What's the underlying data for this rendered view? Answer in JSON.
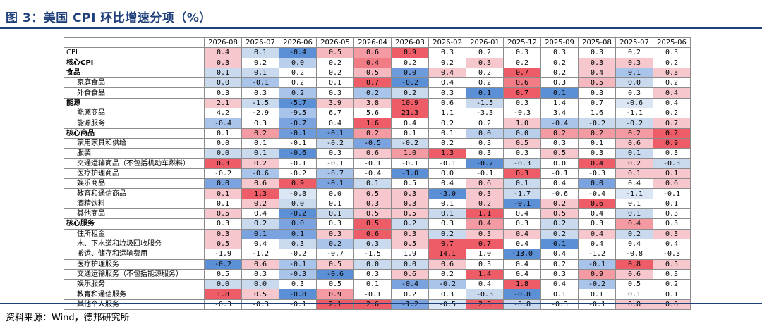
{
  "title": "图 3：美国 CPI 环比增速分项（%）",
  "source": "资料来源：Wind，德邦研究所",
  "table": {
    "columns": [
      "2026-08",
      "2026-07",
      "2026-06",
      "2026-05",
      "2026-04",
      "2026-03",
      "2026-02",
      "2026-01",
      "2025-12",
      "2025-09",
      "2025-08",
      "2025-07",
      "2025-06"
    ],
    "rows": [
      {
        "label": "CPI",
        "level": 0,
        "values": [
          "0.4",
          "0.1",
          "-0.4",
          "0.5",
          "0.6",
          "0.9",
          "0.3",
          "0.2",
          "0.3",
          "0.3",
          "0.3",
          "0.2",
          "0.3"
        ],
        "colors": [
          "#f6c7cc",
          "#c9d9ee",
          "#5b8fd6",
          "#f5b8be",
          "#f49aa2",
          "#ee5c67",
          "#ffffff",
          "#ffffff",
          "#ffffff",
          "#ffffff",
          "#ffffff",
          "#ffffff",
          "#ffffff"
        ]
      },
      {
        "label": "核心CPI",
        "level": 1,
        "values": [
          "0.3",
          "0.2",
          "0.0",
          "0.2",
          "0.4",
          "0.2",
          "0.2",
          "0.3",
          "0.2",
          "0.2",
          "0.3",
          "0.3",
          "0.2"
        ],
        "colors": [
          "#f6c7cc",
          "#ffffff",
          "#b9cfec",
          "#ffffff",
          "#f17c86",
          "#ffffff",
          "#ffffff",
          "#f6c7cc",
          "#ffffff",
          "#ffffff",
          "#f6c7cc",
          "#f6c7cc",
          "#ffffff"
        ]
      },
      {
        "label": "食品",
        "level": 1,
        "values": [
          "0.1",
          "0.1",
          "0.2",
          "0.2",
          "0.5",
          "0.0",
          "0.4",
          "0.2",
          "0.7",
          "0.2",
          "0.4",
          "0.1",
          "0.3"
        ],
        "colors": [
          "#c9d9ee",
          "#c9d9ee",
          "#ffffff",
          "#ffffff",
          "#f5b8be",
          "#6e9bdb",
          "#f6c7cc",
          "#ffffff",
          "#ee5c67",
          "#ffffff",
          "#f6c7cc",
          "#a9c4ea",
          "#f6c7cc"
        ]
      },
      {
        "label": "家庭食品",
        "level": 2,
        "values": [
          "0.0",
          "-0.1",
          "0.2",
          "0.1",
          "0.7",
          "-0.2",
          "0.4",
          "0.2",
          "0.6",
          "0.3",
          "0.5",
          "0.0",
          "0.2"
        ],
        "colors": [
          "#c9d9ee",
          "#a9c4ea",
          "#ffffff",
          "#ffffff",
          "#ee5c67",
          "#5b8fd6",
          "#ffffff",
          "#ffffff",
          "#f17c86",
          "#ffffff",
          "#f5b8be",
          "#c9d9ee",
          "#ffffff"
        ]
      },
      {
        "label": "外食食品",
        "level": 2,
        "values": [
          "0.3",
          "0.3",
          "0.2",
          "0.3",
          "0.2",
          "0.2",
          "0.3",
          "0.1",
          "0.7",
          "0.1",
          "0.3",
          "0.3",
          "0.4"
        ],
        "colors": [
          "#ffffff",
          "#ffffff",
          "#a9c4ea",
          "#ffffff",
          "#a9c4ea",
          "#c9d9ee",
          "#ffffff",
          "#5b8fd6",
          "#ee5c67",
          "#5b8fd6",
          "#ffffff",
          "#ffffff",
          "#f6c7cc"
        ]
      },
      {
        "label": "能源",
        "level": 1,
        "values": [
          "2.1",
          "-1.5",
          "-5.7",
          "3.9",
          "3.8",
          "10.9",
          "0.6",
          "-1.5",
          "0.3",
          "1.4",
          "0.7",
          "-0.6",
          "0.4"
        ],
        "colors": [
          "#f6c7cc",
          "#c9d9ee",
          "#5b8fd6",
          "#f6c7cc",
          "#f6c7cc",
          "#ee5c67",
          "#ffffff",
          "#c9d9ee",
          "#ffffff",
          "#ffffff",
          "#ffffff",
          "#dbe6f4",
          "#ffffff"
        ]
      },
      {
        "label": "能源商品",
        "level": 2,
        "values": [
          "4.2",
          "-2.9",
          "-9.5",
          "6.7",
          "5.6",
          "21.3",
          "1.1",
          "-3.3",
          "-0.3",
          "3.4",
          "1.6",
          "-1.1",
          "0.2"
        ],
        "colors": [
          "#ffffff",
          "#ffffff",
          "#a9c4ea",
          "#ffffff",
          "#ffffff",
          "#ee5c67",
          "#ffffff",
          "#ffffff",
          "#ffffff",
          "#ffffff",
          "#ffffff",
          "#ffffff",
          "#ffffff"
        ]
      },
      {
        "label": "能源服务",
        "level": 2,
        "values": [
          "-0.4",
          "0.3",
          "-0.7",
          "0.4",
          "1.6",
          "0.4",
          "0.2",
          "0.2",
          "1.0",
          "-0.4",
          "-0.2",
          "-0.2",
          "0.7"
        ],
        "colors": [
          "#a9c4ea",
          "#ffffff",
          "#7ba3df",
          "#ffffff",
          "#ee5c67",
          "#ffffff",
          "#ffffff",
          "#ffffff",
          "#f6c7cc",
          "#a9c4ea",
          "#c9d9ee",
          "#c9d9ee",
          "#f6c7cc"
        ]
      },
      {
        "label": "核心商品",
        "level": 1,
        "values": [
          "0.1",
          "0.2",
          "-0.1",
          "-0.1",
          "0.2",
          "0.1",
          "0.1",
          "0.0",
          "0.0",
          "0.2",
          "0.2",
          "0.2",
          "0.2"
        ],
        "colors": [
          "#ffffff",
          "#f49aa2",
          "#6e9bdb",
          "#6e9bdb",
          "#f49aa2",
          "#ffffff",
          "#ffffff",
          "#b9cfec",
          "#b9cfec",
          "#f49aa2",
          "#f49aa2",
          "#f49aa2",
          "#ee5c67"
        ]
      },
      {
        "label": "家用家具和供给",
        "level": 2,
        "values": [
          "0.0",
          "0.1",
          "-0.1",
          "-0.2",
          "-0.5",
          "-0.2",
          "0.2",
          "0.3",
          "0.5",
          "0.3",
          "0.1",
          "0.6",
          "0.9"
        ],
        "colors": [
          "#ffffff",
          "#ffffff",
          "#ffffff",
          "#c9d9ee",
          "#7ba3df",
          "#c9d9ee",
          "#ffffff",
          "#ffffff",
          "#f6c7cc",
          "#ffffff",
          "#ffffff",
          "#f6c7cc",
          "#ee5c67"
        ]
      },
      {
        "label": "服装",
        "level": 2,
        "values": [
          "0.0",
          "0.1",
          "-0.6",
          "0.3",
          "0.6",
          "1.0",
          "1.3",
          "0.3",
          "0.3",
          "0.5",
          "0.3",
          "0.1",
          "0.3"
        ],
        "colors": [
          "#c9d9ee",
          "#c9d9ee",
          "#5b8fd6",
          "#ffffff",
          "#f6c7cc",
          "#f49aa2",
          "#ee5c67",
          "#ffffff",
          "#ffffff",
          "#f6c7cc",
          "#ffffff",
          "#c9d9ee",
          "#ffffff"
        ]
      },
      {
        "label": "交通运输商品（不包括机动车燃料）",
        "level": 2,
        "values": [
          "0.3",
          "0.2",
          "-0.1",
          "-0.1",
          "-0.1",
          "-0.1",
          "-0.1",
          "-0.7",
          "-0.3",
          "0.0",
          "0.4",
          "0.2",
          "-0.3"
        ],
        "colors": [
          "#ee5c67",
          "#f6c7cc",
          "#ffffff",
          "#ffffff",
          "#ffffff",
          "#ffffff",
          "#ffffff",
          "#5b8fd6",
          "#c9d9ee",
          "#ffffff",
          "#ee5c67",
          "#f6c7cc",
          "#c9d9ee"
        ]
      },
      {
        "label": "医疗护理商品",
        "level": 2,
        "values": [
          "-0.2",
          "-0.6",
          "-0.2",
          "-0.7",
          "-0.4",
          "-1.0",
          "0.0",
          "-0.1",
          "0.3",
          "-0.1",
          "-0.3",
          "0.1",
          "0.1"
        ],
        "colors": [
          "#ffffff",
          "#a9c4ea",
          "#ffffff",
          "#a9c4ea",
          "#ffffff",
          "#5b8fd6",
          "#ffffff",
          "#ffffff",
          "#ee5c67",
          "#ffffff",
          "#ffffff",
          "#f6c7cc",
          "#f6c7cc"
        ]
      },
      {
        "label": "娱乐商品",
        "level": 2,
        "values": [
          "0.0",
          "0.6",
          "0.9",
          "-0.1",
          "0.1",
          "0.5",
          "0.4",
          "0.6",
          "0.1",
          "0.4",
          "0.0",
          "0.4",
          "0.6"
        ],
        "colors": [
          "#7ba3df",
          "#f6c7cc",
          "#ee5c67",
          "#7ba3df",
          "#c9d9ee",
          "#ffffff",
          "#ffffff",
          "#f6c7cc",
          "#c9d9ee",
          "#ffffff",
          "#7ba3df",
          "#ffffff",
          "#f6c7cc"
        ]
      },
      {
        "label": "教育和通信商品",
        "level": 2,
        "values": [
          "0.1",
          "1.3",
          "-0.8",
          "0.0",
          "0.5",
          "0.3",
          "-3.0",
          "0.3",
          "-1.7",
          "-0.6",
          "-0.4",
          "-1.1",
          "-0.1"
        ],
        "colors": [
          "#f6c7cc",
          "#ee5c67",
          "#dbe6f4",
          "#ffffff",
          "#f6c7cc",
          "#f6c7cc",
          "#5b8fd6",
          "#f6c7cc",
          "#c9d9ee",
          "#ffffff",
          "#ffffff",
          "#dbe6f4",
          "#ffffff"
        ]
      },
      {
        "label": "酒精饮料",
        "level": 2,
        "values": [
          "0.1",
          "0.2",
          "0.0",
          "0.1",
          "0.3",
          "0.3",
          "0.1",
          "0.2",
          "-0.1",
          "0.2",
          "0.6",
          "0.1",
          "0.1"
        ],
        "colors": [
          "#ffffff",
          "#f6c7cc",
          "#c9d9ee",
          "#ffffff",
          "#f6c7cc",
          "#f6c7cc",
          "#ffffff",
          "#f6c7cc",
          "#5b8fd6",
          "#f6c7cc",
          "#ee5c67",
          "#ffffff",
          "#ffffff"
        ]
      },
      {
        "label": "其他商品",
        "level": 2,
        "values": [
          "0.5",
          "0.4",
          "-0.2",
          "0.1",
          "0.5",
          "0.5",
          "0.1",
          "1.1",
          "0.4",
          "0.5",
          "0.4",
          "0.1",
          "0.3"
        ],
        "colors": [
          "#f6c7cc",
          "#ffffff",
          "#5b8fd6",
          "#c9d9ee",
          "#f6c7cc",
          "#f6c7cc",
          "#c9d9ee",
          "#ee5c67",
          "#ffffff",
          "#f6c7cc",
          "#ffffff",
          "#c9d9ee",
          "#ffffff"
        ]
      },
      {
        "label": "核心服务",
        "level": 1,
        "values": [
          "0.3",
          "0.2",
          "0.0",
          "0.3",
          "0.5",
          "0.2",
          "0.3",
          "0.4",
          "0.3",
          "0.2",
          "0.3",
          "0.4",
          "0.3"
        ],
        "colors": [
          "#ffffff",
          "#c9d9ee",
          "#7ba3df",
          "#ffffff",
          "#ee5c67",
          "#c9d9ee",
          "#ffffff",
          "#f49aa2",
          "#ffffff",
          "#c9d9ee",
          "#ffffff",
          "#f49aa2",
          "#ffffff"
        ]
      },
      {
        "label": "住所租金",
        "level": 2,
        "values": [
          "0.3",
          "0.1",
          "0.1",
          "0.3",
          "0.6",
          "0.3",
          "0.2",
          "0.3",
          "0.4",
          "0.2",
          "0.4",
          "0.2",
          "0.3"
        ],
        "colors": [
          "#f6c7cc",
          "#7ba3df",
          "#7ba3df",
          "#f6c7cc",
          "#ee5c67",
          "#f6c7cc",
          "#c9d9ee",
          "#f6c7cc",
          "#f6c7cc",
          "#c9d9ee",
          "#f6c7cc",
          "#c9d9ee",
          "#f6c7cc"
        ]
      },
      {
        "label": "水、下水道和垃圾回收服务",
        "level": 2,
        "values": [
          "0.5",
          "0.4",
          "0.3",
          "0.2",
          "0.3",
          "0.5",
          "0.7",
          "0.7",
          "0.4",
          "0.1",
          "0.4",
          "0.4",
          "0.4"
        ],
        "colors": [
          "#f6c7cc",
          "#ffffff",
          "#c9d9ee",
          "#a9c4ea",
          "#c9d9ee",
          "#f6c7cc",
          "#ee5c67",
          "#ee5c67",
          "#ffffff",
          "#5b8fd6",
          "#ffffff",
          "#ffffff",
          "#ffffff"
        ]
      },
      {
        "label": "搬运、储存和运输费用",
        "level": 2,
        "values": [
          "-1.9",
          "-1.2",
          "-0.2",
          "-0.7",
          "-1.5",
          "1.9",
          "14.1",
          "1.0",
          "-13.0",
          "0.4",
          "-1.2",
          "-0.8",
          "-0.3"
        ],
        "colors": [
          "#ffffff",
          "#ffffff",
          "#ffffff",
          "#ffffff",
          "#ffffff",
          "#ffffff",
          "#ee5c67",
          "#ffffff",
          "#5b8fd6",
          "#ffffff",
          "#ffffff",
          "#ffffff",
          "#ffffff"
        ]
      },
      {
        "label": "医疗护理服务",
        "level": 2,
        "values": [
          "-0.2",
          "0.6",
          "-0.1",
          "0.5",
          "0.0",
          "0.0",
          "0.6",
          "0.3",
          "0.4",
          "0.2",
          "-0.1",
          "0.8",
          "0.5"
        ],
        "colors": [
          "#5b8fd6",
          "#f6c7cc",
          "#a9c4ea",
          "#f6c7cc",
          "#c9d9ee",
          "#c9d9ee",
          "#f6c7cc",
          "#ffffff",
          "#ffffff",
          "#ffffff",
          "#a9c4ea",
          "#ee5c67",
          "#f6c7cc"
        ]
      },
      {
        "label": "交通运输服务（不包括能源服务）",
        "level": 2,
        "values": [
          "0.5",
          "0.3",
          "-0.3",
          "-0.6",
          "0.3",
          "0.6",
          "0.2",
          "1.4",
          "0.4",
          "0.3",
          "0.9",
          "0.6",
          "0.3"
        ],
        "colors": [
          "#ffffff",
          "#ffffff",
          "#a9c4ea",
          "#5b8fd6",
          "#ffffff",
          "#f6c7cc",
          "#ffffff",
          "#ee5c67",
          "#ffffff",
          "#ffffff",
          "#f49aa2",
          "#f6c7cc",
          "#ffffff"
        ]
      },
      {
        "label": "娱乐服务",
        "level": 2,
        "values": [
          "0.0",
          "0.0",
          "0.3",
          "0.5",
          "0.1",
          "-0.4",
          "-0.2",
          "0.4",
          "1.8",
          "0.4",
          "-0.2",
          "0.5",
          "0.2"
        ],
        "colors": [
          "#c9d9ee",
          "#c9d9ee",
          "#ffffff",
          "#ffffff",
          "#ffffff",
          "#7ba3df",
          "#a9c4ea",
          "#ffffff",
          "#ee5c67",
          "#ffffff",
          "#a9c4ea",
          "#ffffff",
          "#ffffff"
        ]
      },
      {
        "label": "教育和通信服务",
        "level": 2,
        "values": [
          "1.8",
          "0.5",
          "-0.8",
          "0.9",
          "-0.1",
          "0.2",
          "0.3",
          "-0.3",
          "-0.8",
          "0.1",
          "0.1",
          "0.1",
          "0.1"
        ],
        "colors": [
          "#ee5c67",
          "#f6c7cc",
          "#5b8fd6",
          "#f49aa2",
          "#ffffff",
          "#ffffff",
          "#ffffff",
          "#c9d9ee",
          "#5b8fd6",
          "#ffffff",
          "#ffffff",
          "#ffffff",
          "#ffffff"
        ]
      },
      {
        "label": "其他个人服务",
        "level": 2,
        "values": [
          "-0.3",
          "-0.3",
          "-0.1",
          "2.1",
          "2.6",
          "-1.2",
          "-0.5",
          "2.3",
          "-0.8",
          "-0.3",
          "-0.1",
          "0.8",
          "0.6"
        ],
        "colors": [
          "#ffffff",
          "#ffffff",
          "#ffffff",
          "#ee5c67",
          "#ee5c67",
          "#7ba3df",
          "#dbe6f4",
          "#ee5c67",
          "#c9d9ee",
          "#ffffff",
          "#ffffff",
          "#f6c7cc",
          "#f6c7cc"
        ]
      }
    ]
  }
}
